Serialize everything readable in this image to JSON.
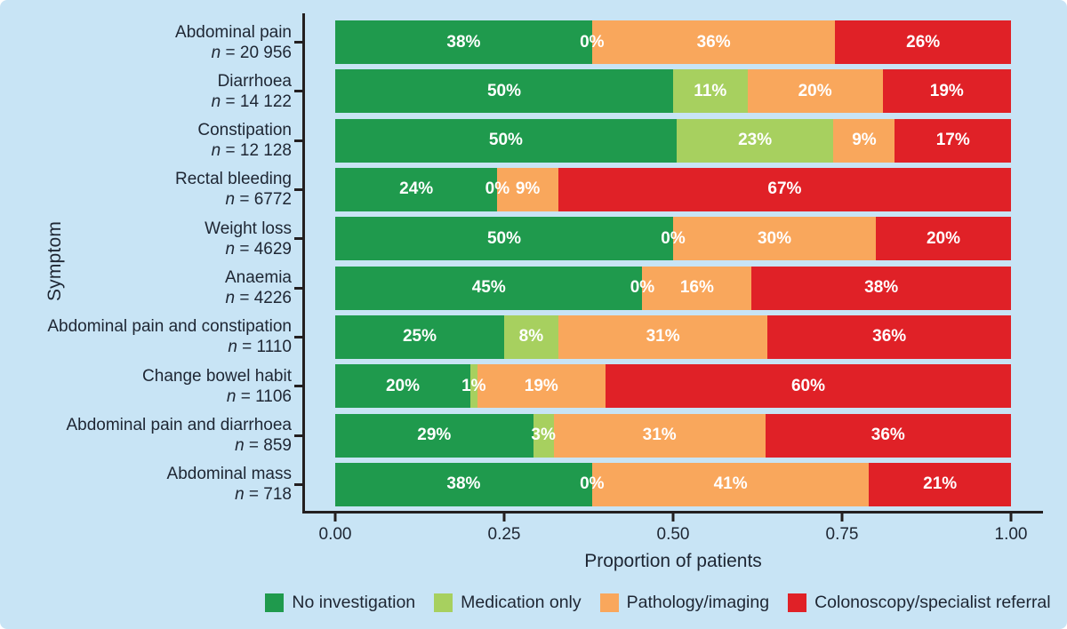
{
  "figure": {
    "background_color": "#c8e4f5",
    "axis_line_color": "#231f20",
    "text_color": "#1e2633",
    "bar_label_color": "#ffffff"
  },
  "chart_data": {
    "type": "bar",
    "orientation": "horizontal",
    "stacked": true,
    "xlabel": "Proportion of patients",
    "ylabel": "Symptom",
    "xlim": [
      0,
      1
    ],
    "x_ticks": [
      0,
      0.25,
      0.5,
      0.75,
      1
    ],
    "x_tick_labels": [
      "0.00",
      "0.25",
      "0.50",
      "0.75",
      "1.00"
    ],
    "value_label_suffix": "%",
    "legend_position": "bottom",
    "series_names": [
      "No investigation",
      "Medication only",
      "Pathology/imaging",
      "Colonoscopy/specialist referral"
    ],
    "series_colors": [
      "#1f9a4d",
      "#a7d05f",
      "#f9a75c",
      "#e02127"
    ],
    "categories": [
      {
        "label": "Abdominal pain",
        "n_label": "n = 20 956",
        "values": [
          38,
          0,
          36,
          26
        ]
      },
      {
        "label": "Diarrhoea",
        "n_label": "n = 14 122",
        "values": [
          50,
          11,
          20,
          19
        ]
      },
      {
        "label": "Constipation",
        "n_label": "n = 12 128",
        "values": [
          50,
          23,
          9,
          17
        ]
      },
      {
        "label": "Rectal bleeding",
        "n_label": "n = 6772",
        "values": [
          24,
          0,
          9,
          67
        ]
      },
      {
        "label": "Weight loss",
        "n_label": "n = 4629",
        "values": [
          50,
          0,
          30,
          20
        ]
      },
      {
        "label": "Anaemia",
        "n_label": "n = 4226",
        "values": [
          45,
          0,
          16,
          38
        ]
      },
      {
        "label": "Abdominal pain and constipation",
        "n_label": "n = 1110",
        "values": [
          25,
          8,
          31,
          36
        ]
      },
      {
        "label": "Change bowel habit",
        "n_label": "n = 1106",
        "values": [
          20,
          1,
          19,
          60
        ]
      },
      {
        "label": "Abdominal pain and diarrhoea",
        "n_label": "n = 859",
        "values": [
          29,
          3,
          31,
          36
        ]
      },
      {
        "label": "Abdominal mass",
        "n_label": "n = 718",
        "values": [
          38,
          0,
          41,
          21
        ]
      }
    ]
  },
  "legend": {
    "items": [
      {
        "label": "No investigation",
        "color": "#1f9a4d"
      },
      {
        "label": "Medication only",
        "color": "#a7d05f"
      },
      {
        "label": "Pathology/imaging",
        "color": "#f9a75c"
      },
      {
        "label": "Colonoscopy/specialist referral",
        "color": "#e02127"
      }
    ]
  }
}
